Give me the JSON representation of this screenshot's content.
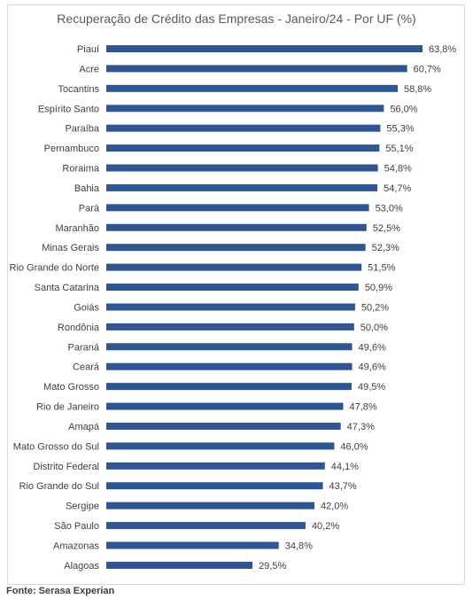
{
  "chart_data": {
    "type": "bar",
    "orientation": "horizontal",
    "title": "Recuperação de Crédito das Empresas - Janeiro/24 - Por UF (%)",
    "categories": [
      "Piauí",
      "Acre",
      "Tocantins",
      "Espírito Santo",
      "Paraíba",
      "Pernambuco",
      "Roraima",
      "Bahia",
      "Pará",
      "Maranhão",
      "Minas Gerais",
      "Rio Grande do Norte",
      "Santa Catarina",
      "Goiás",
      "Rondônia",
      "Paraná",
      "Ceará",
      "Mato Grosso",
      "Rio de Janeiro",
      "Amapá",
      "Mato Grosso do Sul",
      "Distrito Federal",
      "Rio Grande do Sul",
      "Sergipe",
      "São Paulo",
      "Amazonas",
      "Alagoas"
    ],
    "values": [
      63.8,
      60.7,
      58.8,
      56.0,
      55.3,
      55.1,
      54.8,
      54.7,
      53.0,
      52.5,
      52.3,
      51.5,
      50.9,
      50.2,
      50.0,
      49.6,
      49.6,
      49.5,
      47.8,
      47.3,
      46.0,
      44.1,
      43.7,
      42.0,
      40.2,
      34.8,
      29.5
    ],
    "value_labels": [
      "63,8%",
      "60,7%",
      "58,8%",
      "56,0%",
      "55,3%",
      "55,1%",
      "54,8%",
      "54,7%",
      "53,0%",
      "52,5%",
      "52,3%",
      "51,5%",
      "50,9%",
      "50,2%",
      "50,0%",
      "49,6%",
      "49,6%",
      "49,5%",
      "47,8%",
      "47,3%",
      "46,0%",
      "44,1%",
      "43,7%",
      "42,0%",
      "40,2%",
      "34,8%",
      "29,5%"
    ],
    "bar_color": "#2f5597",
    "xlim": [
      0,
      63.8
    ],
    "grid": false,
    "legend": "none"
  },
  "footer": {
    "source": "Fonte: Serasa Experian"
  }
}
